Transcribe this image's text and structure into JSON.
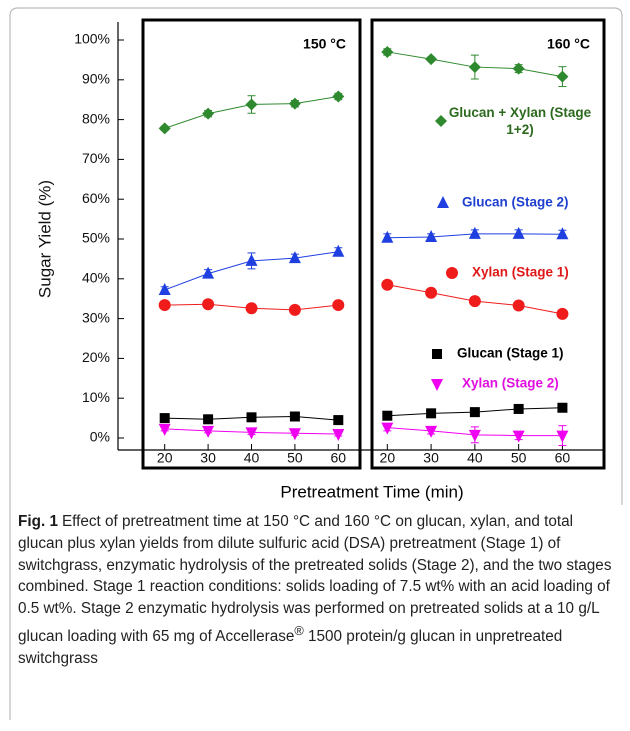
{
  "chart_data": [
    {
      "type": "line",
      "title": "150 °C",
      "ylabel": "Sugar Yield (%)",
      "xlabel": "Pretreatment Time (min)",
      "x": [
        20,
        30,
        40,
        50,
        60
      ],
      "xlim": [
        15,
        65
      ],
      "xticks": [
        20,
        30,
        40,
        50,
        60
      ],
      "ylim": [
        0,
        100
      ],
      "yticks": [
        {
          "value": 0,
          "label": "0%"
        },
        {
          "value": 10,
          "label": "10%"
        },
        {
          "value": 20,
          "label": "20%"
        },
        {
          "value": 30,
          "label": "30%"
        },
        {
          "value": 40,
          "label": "40%"
        },
        {
          "value": 50,
          "label": "50%"
        },
        {
          "value": 60,
          "label": "60%"
        },
        {
          "value": 70,
          "label": "70%"
        },
        {
          "value": 80,
          "label": "80%"
        },
        {
          "value": 90,
          "label": "90%"
        },
        {
          "value": 100,
          "label": "100%"
        }
      ],
      "series": [
        {
          "color": "#2f8a2f",
          "marker": "diamond",
          "values": [
            77.8,
            81.5,
            83.8,
            84.0,
            85.8
          ],
          "errors": [
            0.5,
            0.8,
            2.2,
            0.8,
            0.8
          ]
        },
        {
          "color": "#1f3fe0",
          "marker": "triangle",
          "values": [
            37.2,
            41.3,
            44.5,
            45.2,
            46.8
          ],
          "errors": [
            0.8,
            1.0,
            2.0,
            1.0,
            1.0
          ]
        },
        {
          "color": "#f01c1c",
          "marker": "circle",
          "values": [
            33.4,
            33.6,
            32.6,
            32.2,
            33.4
          ],
          "errors": [
            0.5,
            0.5,
            0.5,
            0.5,
            0.5
          ]
        },
        {
          "color": "#000000",
          "marker": "square",
          "values": [
            5.0,
            4.7,
            5.2,
            5.4,
            4.5
          ],
          "errors": [
            0.3,
            0.3,
            0.3,
            0.3,
            0.3
          ]
        },
        {
          "color": "#f000f0",
          "marker": "down-triangle",
          "values": [
            2.3,
            1.8,
            1.4,
            1.2,
            1.0
          ],
          "errors": [
            0.5,
            0.5,
            0.5,
            0.5,
            0.5
          ]
        }
      ]
    },
    {
      "type": "line",
      "title": "160 °C",
      "x": [
        20,
        30,
        40,
        50,
        60
      ],
      "xlim": [
        16.5,
        69.5
      ],
      "xticks": [
        20,
        30,
        40,
        50,
        60
      ],
      "ylim": [
        0,
        100
      ],
      "series": [
        {
          "name": "Glucan + Xylan (Stage 1+2)",
          "color": "#2f8a2f",
          "text_color": "#2c6a1e",
          "marker": "diamond",
          "values": [
            97.0,
            95.2,
            93.2,
            92.8,
            90.8
          ],
          "errors": [
            0.8,
            0.5,
            3.0,
            1.0,
            2.5
          ]
        },
        {
          "name": "Glucan (Stage 2)",
          "color": "#1f3fe0",
          "text_color": "#1f3fd0",
          "marker": "triangle",
          "values": [
            50.3,
            50.5,
            51.3,
            51.3,
            51.2
          ],
          "errors": [
            1.0,
            0.8,
            1.0,
            1.0,
            1.0
          ]
        },
        {
          "name": "Xylan (Stage 1)",
          "color": "#f01c1c",
          "text_color": "#e01818",
          "marker": "circle",
          "values": [
            38.5,
            36.5,
            34.4,
            33.3,
            31.2
          ],
          "errors": [
            0.5,
            0.5,
            0.5,
            0.5,
            0.5
          ]
        },
        {
          "name": "Glucan (Stage 1)",
          "color": "#000000",
          "text_color": "#000000",
          "marker": "square",
          "values": [
            5.6,
            6.2,
            6.5,
            7.3,
            7.6
          ],
          "errors": [
            0.3,
            0.3,
            0.3,
            0.3,
            0.3
          ]
        },
        {
          "name": "Xylan (Stage 2)",
          "color": "#f000f0",
          "text_color": "#e010e0",
          "marker": "down-triangle",
          "values": [
            2.6,
            1.8,
            0.8,
            0.6,
            0.6
          ],
          "errors": [
            0.8,
            0.8,
            2.0,
            1.0,
            2.5
          ]
        }
      ]
    }
  ],
  "caption": {
    "label": "Fig. 1",
    "text": "Effect of pretreatment time at 150 °C and 160 °C on glucan, xylan, and total glucan plus xylan yields from dilute sulfuric acid (DSA) pretreatment (Stage 1) of switchgrass, enzymatic hydrolysis of the pretreated solids (Stage 2), and the two stages combined. Stage 1 reaction conditions: solids loading of 7.5 wt% with an acid loading of 0.5 wt%. Stage 2 enzymatic hydrolysis was performed on pretreated solids at a 10 g/L glucan loading with 65 mg of Accellerase",
    "mark": "®",
    "text_after": " 1500 protein/g glucan in unpretreated switchgrass"
  }
}
